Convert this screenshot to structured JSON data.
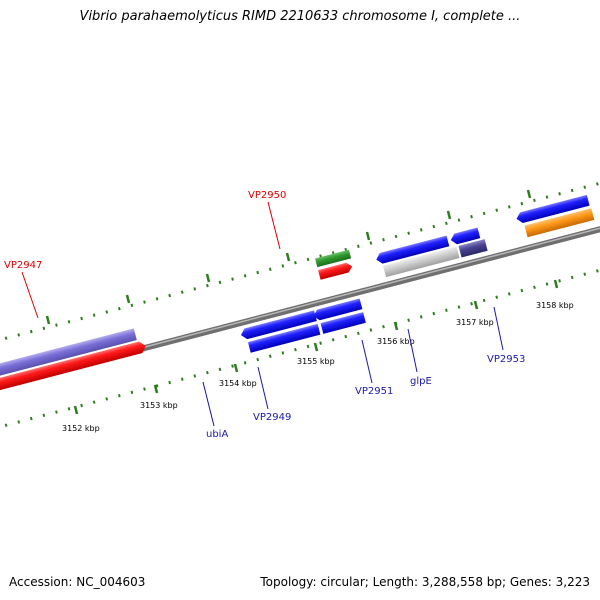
{
  "title": "Vibrio parahaemolyticus RIMD 2210633 chromosome I, complete ...",
  "footer": {
    "accession": "Accession: NC_004603",
    "summary": "Topology: circular; Length: 3,288,558 bp; Genes: 3,223"
  },
  "colors": {
    "backbone": "#8a8a8a",
    "tick": "#2e7d1e",
    "label_red": "#dd0000",
    "label_blue": "#1a1aa8"
  },
  "scale_labels": [
    "3152 kbp",
    "3153 kbp",
    "3154 kbp",
    "3155 kbp",
    "3156 kbp",
    "3157 kbp",
    "3158 kbp"
  ],
  "gene_labels": [
    "VP2947",
    "VP2950",
    "ubiA",
    "VP2949",
    "VP2951",
    "glpE",
    "VP2953"
  ]
}
